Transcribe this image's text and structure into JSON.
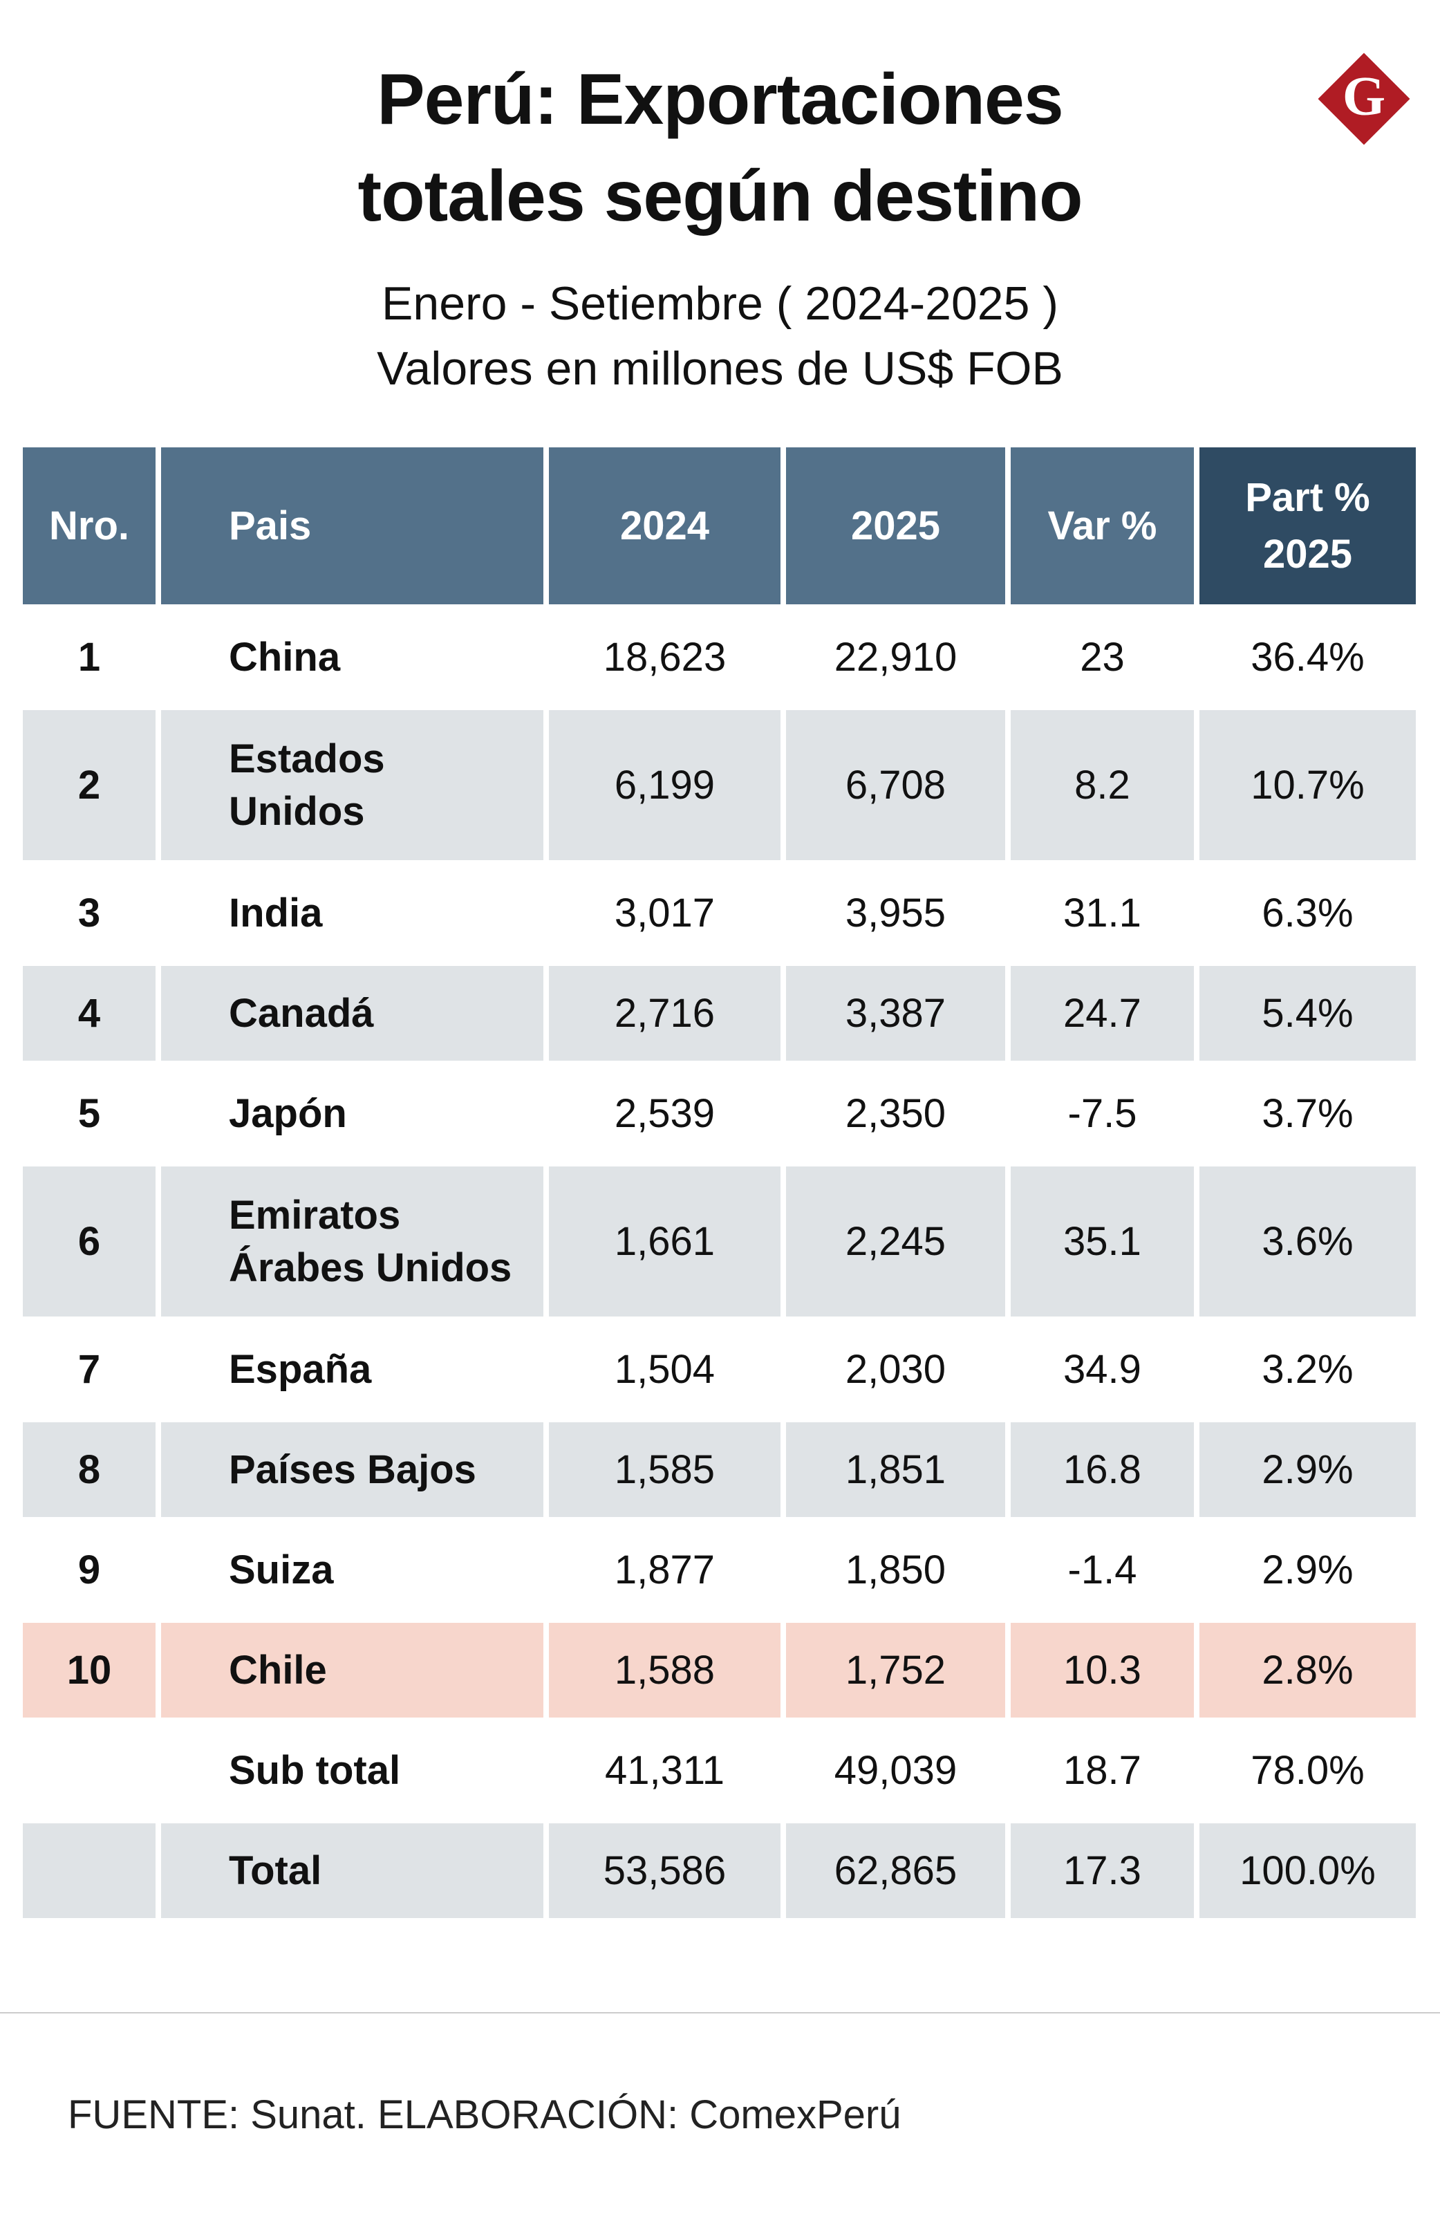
{
  "header": {
    "title": [
      "Perú: Exportaciones",
      "totales según destino"
    ],
    "subtitle": [
      "Enero - Setiembre ( 2024-2025 )",
      "Valores en millones de US$ FOB"
    ],
    "logo": "G"
  },
  "table": {
    "columns": [
      "Nro.",
      "Pais",
      "2024",
      "2025",
      "Var %",
      "Part % 2025"
    ],
    "rows": [
      {
        "nro": "1",
        "pais": [
          "China"
        ],
        "v2024": "18,623",
        "v2025": "22,910",
        "var": "23",
        "part": "36.4%"
      },
      {
        "nro": "2",
        "pais": [
          "Estados",
          "Unidos"
        ],
        "v2024": "6,199",
        "v2025": "6,708",
        "var": "8.2",
        "part": "10.7%"
      },
      {
        "nro": "3",
        "pais": [
          "India"
        ],
        "v2024": "3,017",
        "v2025": "3,955",
        "var": "31.1",
        "part": "6.3%"
      },
      {
        "nro": "4",
        "pais": [
          "Canadá"
        ],
        "v2024": "2,716",
        "v2025": "3,387",
        "var": "24.7",
        "part": "5.4%"
      },
      {
        "nro": "5",
        "pais": [
          "Japón"
        ],
        "v2024": "2,539",
        "v2025": "2,350",
        "var": "-7.5",
        "part": "3.7%"
      },
      {
        "nro": "6",
        "pais": [
          "Emiratos",
          "Árabes Unidos"
        ],
        "v2024": "1,661",
        "v2025": "2,245",
        "var": "35.1",
        "part": "3.6%"
      },
      {
        "nro": "7",
        "pais": [
          "España"
        ],
        "v2024": "1,504",
        "v2025": "2,030",
        "var": "34.9",
        "part": "3.2%"
      },
      {
        "nro": "8",
        "pais": [
          "Países Bajos"
        ],
        "v2024": "1,585",
        "v2025": "1,851",
        "var": "16.8",
        "part": "2.9%"
      },
      {
        "nro": "9",
        "pais": [
          "Suiza"
        ],
        "v2024": "1,877",
        "v2025": "1,850",
        "var": "-1.4",
        "part": "2.9%"
      },
      {
        "nro": "10",
        "pais": [
          "Chile"
        ],
        "v2024": "1,588",
        "v2025": "1,752",
        "var": "10.3",
        "part": "2.8%",
        "highlight": true
      },
      {
        "pais": [
          "Sub total"
        ],
        "v2024": "41,311",
        "v2025": "49,039",
        "var": "18.7",
        "part": "78.0%"
      },
      {
        "pais": [
          "Total"
        ],
        "v2024": "53,586",
        "v2025": "62,865",
        "var": "17.3",
        "part": "100.0%"
      }
    ]
  },
  "footer": {
    "source": "FUENTE: Sunat. ELABORACIÓN: ComexPerú"
  }
}
